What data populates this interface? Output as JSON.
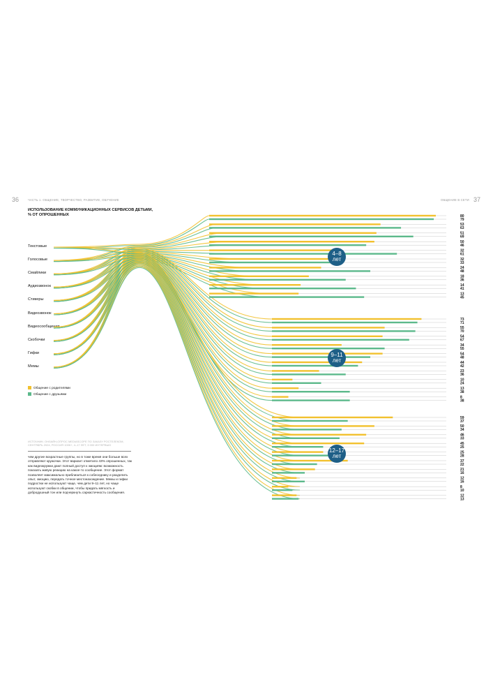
{
  "header": {
    "page_left": "36",
    "page_right": "37",
    "running_left": "ЧАСТЬ 1. ОБЩЕНИЕ, ТВОРЧЕСТВО, РАЗВИТИЕ, ОБУЧЕНИЕ",
    "running_right": "ОБЩЕНИЕ В СЕТИ"
  },
  "source_note": "ИСТОЧНИК: ОНЛАЙН-ОПРОС MEDIASCOPE ПО ЗАКАЗУ РОСТЕЛЕКОМ, СЕНТЯБРЬ 2024, РОССИЯ 100К+, 4–17 ЛЕТ, 3 000 ИНТЕРВЬЮ",
  "body_text": "чем другие возрастные группы, но в тоже время они больше всех отправляют кружочки. Этот вариант отметило 43% опрошенных, так как видеокружки дают полный доступ к эмоциям: возможность показать живую реакцию на какое-то сообщение. Этот формат позволяет максимально приблизиться к собеседнику и разделить опыт, эмоцию, передать точное местонахождение. Мемы и гифки подростки не используют чаще, чем дети 9–11 лет, но чаще используют скобки в общении, чтобы придать мягкость и добродушный тон или подчеркнуть саркастичность сообщения.",
  "colors": {
    "parents": "#f2c12e",
    "friends": "#5cb98b",
    "badge": "#1e5f87",
    "thin_line": "#c8c8c8"
  },
  "chart_data": {
    "type": "bar",
    "title": "ИСПОЛЬЗОВАНИЕ КОММУНИКАЦИОННЫХ СЕРВИСОВ ДЕТЬМИ, % ОТ ОПРОШЕННЫХ",
    "categories": [
      "Текстовые",
      "Голосовые",
      "Смайлики",
      "Аудиозвонок",
      "Стикеры",
      "Видеозвонок",
      "Видеосообщения",
      "Скобочки",
      "Гифки",
      "Мемы"
    ],
    "legend": [
      "Общение с родителями",
      "Общение с друзьями"
    ],
    "groups": [
      {
        "label": "4–8\nлет",
        "parents": [
          80,
          53,
          51,
          50,
          32,
          32,
          24,
          18,
          14,
          13
        ],
        "friends": [
          79,
          63,
          69,
          46,
          61,
          33,
          48,
          36,
          41,
          45
        ]
      },
      {
        "label": "9–11\nлет",
        "parents": [
          73,
          55,
          54,
          34,
          54,
          44,
          23,
          10,
          13,
          8
        ],
        "friends": [
          71,
          70,
          67,
          55,
          48,
          42,
          36,
          24,
          38,
          38
        ]
      },
      {
        "label": "12–17\nлет",
        "parents": [
          59,
          50,
          46,
          45,
          25,
          37,
          21,
          12,
          8,
          12
        ],
        "friends": [
          37,
          34,
          33,
          25,
          28,
          22,
          16,
          16,
          10,
          13
        ]
      }
    ],
    "bottom_values": [
      10,
      13
    ]
  }
}
